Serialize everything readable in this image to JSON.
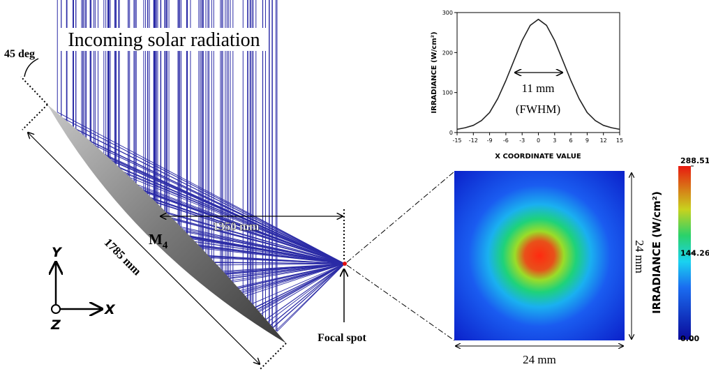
{
  "chart_data": {
    "type": "line",
    "x": [
      -15,
      -13.5,
      -12,
      -10.5,
      -9,
      -7.5,
      -6,
      -4.5,
      -3,
      -1.5,
      0,
      1.5,
      3,
      4.5,
      6,
      7.5,
      9,
      10.5,
      12,
      13.5,
      15
    ],
    "values": [
      8,
      12,
      18,
      30,
      50,
      85,
      130,
      180,
      230,
      268,
      283,
      268,
      230,
      180,
      130,
      85,
      50,
      30,
      18,
      12,
      8
    ],
    "color": "#222222",
    "xlabel": "X COORDINATE VALUE",
    "ylabel": "IRRADIANCE (W/cm²)",
    "xlim": [
      -15,
      15
    ],
    "xticks": [
      -15,
      -12,
      -9,
      -6,
      -3,
      0,
      3,
      6,
      9,
      12,
      15
    ],
    "ylim": [
      0,
      300
    ],
    "yticks": [
      0,
      100,
      200,
      300
    ],
    "annotations": [
      "11 mm",
      "(FWHM)"
    ]
  },
  "heatmap": {
    "colorbar_label": "IRRADIANCE (W/cm²)",
    "clim": [
      0,
      288.51
    ],
    "colorbar_ticks": [
      {
        "value": 0,
        "label": "0.00"
      },
      144.26,
      288.51
    ],
    "width_label": "24 mm",
    "height_label": "24 mm"
  },
  "diagram": {
    "incoming": "Incoming solar radiation",
    "angle": "45 deg",
    "mirror_length": "1785 mm",
    "mirror": "M",
    "mirror_sub": "4",
    "distance": "1350 mm",
    "focal": "Focal spot",
    "axis_y": "Y",
    "axis_x": "X",
    "axis_z": "Z"
  }
}
